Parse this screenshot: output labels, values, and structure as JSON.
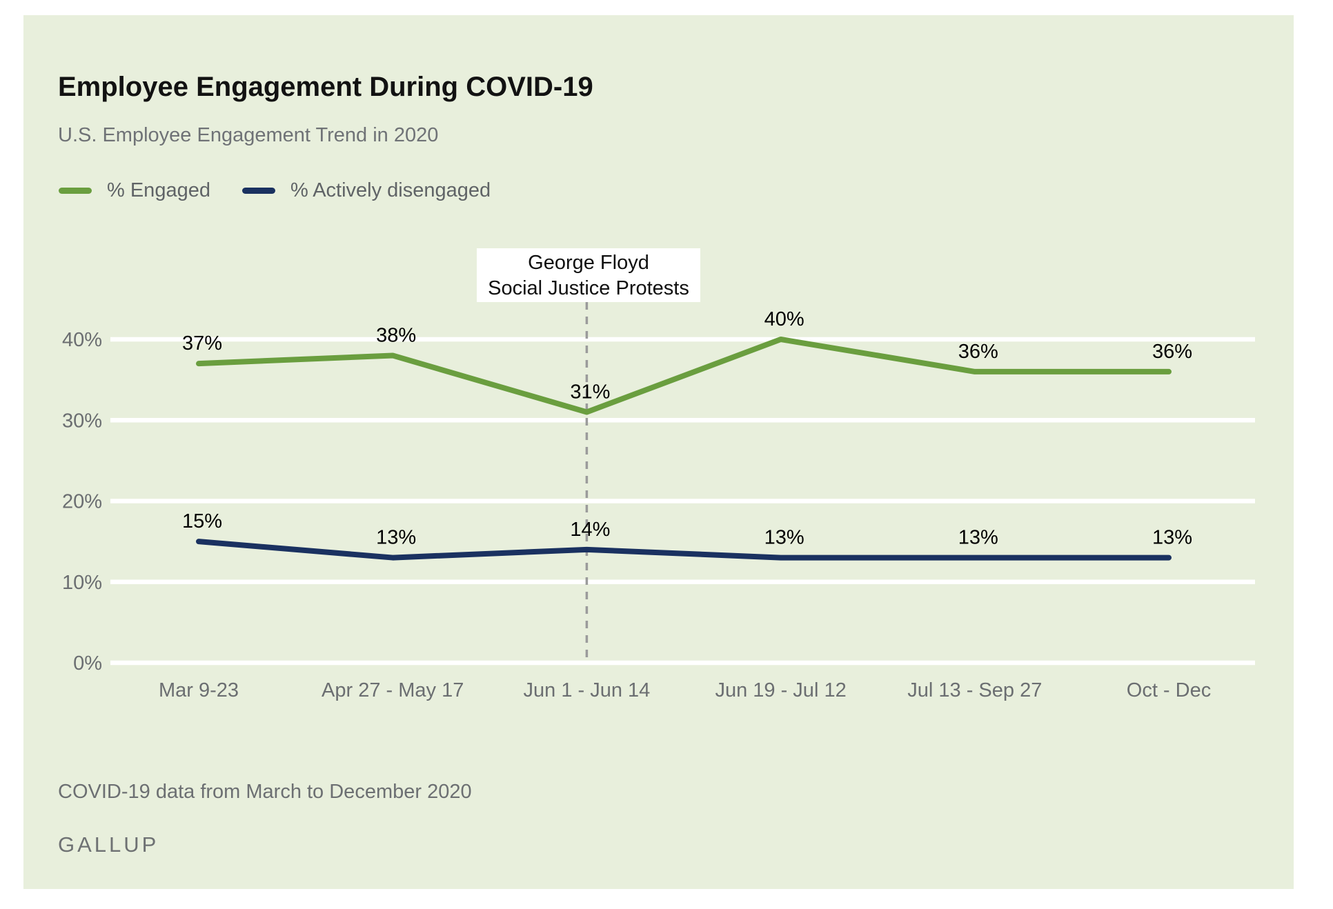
{
  "header": {
    "title": "Employee Engagement During COVID-19",
    "subtitle": "U.S. Employee Engagement Trend in 2020"
  },
  "legend": [
    {
      "label": "% Engaged",
      "color": "#6a9e3f"
    },
    {
      "label": "% Actively disengaged",
      "color": "#1a3160"
    }
  ],
  "annotation": {
    "line1": "George Floyd",
    "line2": "Social Justice Protests"
  },
  "footer": {
    "note": "COVID-19 data from March to December 2020",
    "brand": "GALLUP"
  },
  "colors": {
    "card_background": "#e8efdc",
    "gridline": "#ffffff",
    "dashed_line": "#9b9b9b",
    "axis_text": "#6b6e71",
    "data_label_text": "#000000"
  },
  "chart_data": {
    "type": "line",
    "title": "Employee Engagement During COVID-19",
    "subtitle": "U.S. Employee Engagement Trend in 2020",
    "categories": [
      "Mar 9-23",
      "Apr 27 - May 17",
      "Jun 1 - Jun 14",
      "Jun 19 - Jul 12",
      "Jul 13 - Sep 27",
      "Oct - Dec"
    ],
    "series": [
      {
        "name": "% Engaged",
        "color": "#6a9e3f",
        "values": [
          37,
          38,
          31,
          40,
          36,
          36
        ],
        "labels": [
          "37%",
          "38%",
          "31%",
          "40%",
          "36%",
          "36%"
        ]
      },
      {
        "name": "% Actively disengaged",
        "color": "#1a3160",
        "values": [
          15,
          13,
          14,
          13,
          13,
          13
        ],
        "labels": [
          "15%",
          "13%",
          "14%",
          "13%",
          "13%",
          "13%"
        ]
      }
    ],
    "yticks": [
      0,
      10,
      20,
      30,
      40
    ],
    "ytick_labels": [
      "0%",
      "10%",
      "20%",
      "30%",
      "40%"
    ],
    "ylim": [
      0,
      46
    ],
    "grid": "horizontal-only",
    "legend_position": "top-left",
    "annotation": {
      "text": [
        "George Floyd",
        "Social Justice Protests"
      ],
      "x_category": "Jun 1 - Jun 14",
      "style": "dashed-vertical-line"
    }
  }
}
